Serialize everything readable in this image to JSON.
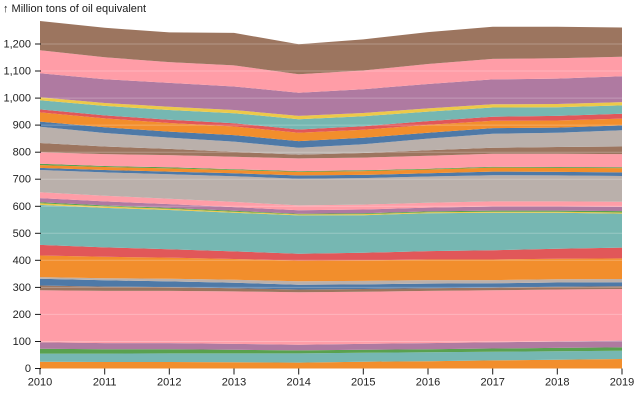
{
  "header": {
    "y_axis_title": "↑ Million tons of oil equivalent"
  },
  "chart_data": {
    "type": "area",
    "stacked": true,
    "title": "Million tons of oil equivalent",
    "xlabel": "",
    "ylabel": "Million tons of oil equivalent",
    "legend": "none",
    "grid": "horizontal white overlay lines every 100",
    "ylim": [
      0,
      1200
    ],
    "x": [
      2010,
      2011,
      2012,
      2013,
      2014,
      2015,
      2016,
      2017,
      2018,
      2019
    ],
    "x_tick_labels": [
      "2010",
      "2011",
      "2012",
      "2013",
      "2014",
      "2015",
      "2016",
      "2017",
      "2018",
      "2019"
    ],
    "y_ticks": [
      {
        "value": 0,
        "label": "0"
      },
      {
        "value": 100,
        "label": "100"
      },
      {
        "value": 200,
        "label": "200"
      },
      {
        "value": 300,
        "label": "300"
      },
      {
        "value": 400,
        "label": "400"
      },
      {
        "value": 500,
        "label": "500"
      },
      {
        "value": 600,
        "label": "600"
      },
      {
        "value": 700,
        "label": "700"
      },
      {
        "value": 800,
        "label": "800"
      },
      {
        "value": 900,
        "label": "900"
      },
      {
        "value": 1000,
        "label": "1,000"
      },
      {
        "value": 1100,
        "label": "1,100"
      },
      {
        "value": 1200,
        "label": "1,200"
      }
    ],
    "totals_by_year": [
      1285,
      1260,
      1243,
      1241,
      1199,
      1217,
      1244,
      1264,
      1264,
      1261
    ],
    "series": [
      {
        "name": "band-01",
        "color": "#f28e2c",
        "values": [
          25,
          24,
          24,
          23,
          22,
          25,
          27,
          30,
          32,
          35
        ]
      },
      {
        "name": "band-02",
        "color": "#76b7b2",
        "values": [
          30,
          31,
          32,
          33,
          34,
          33,
          33,
          32,
          32,
          31
        ]
      },
      {
        "name": "band-03",
        "color": "#59a14f",
        "values": [
          18,
          16,
          15,
          13,
          11,
          11,
          11,
          12,
          12,
          12
        ]
      },
      {
        "name": "band-04",
        "color": "#af7aa1",
        "values": [
          24,
          23,
          23,
          22,
          21,
          22,
          23,
          23,
          24,
          25
        ]
      },
      {
        "name": "band-05",
        "color": "#ff9da7",
        "values": [
          192,
          193,
          193,
          194,
          194,
          193,
          193,
          192,
          192,
          191
        ]
      },
      {
        "name": "band-06",
        "color": "#9c755f",
        "values": [
          18,
          16,
          14,
          12,
          10,
          10,
          10,
          10,
          10,
          10
        ]
      },
      {
        "name": "band-07",
        "color": "#4e79a7",
        "values": [
          25,
          23,
          21,
          20,
          18,
          17,
          17,
          16,
          16,
          15
        ]
      },
      {
        "name": "band-08",
        "color": "#bab0ab",
        "values": [
          6,
          8,
          10,
          11,
          13,
          13,
          13,
          12,
          12,
          12
        ]
      },
      {
        "name": "band-09",
        "color": "#f28e2c",
        "values": [
          80,
          79,
          78,
          77,
          76,
          76,
          76,
          76,
          76,
          76
        ]
      },
      {
        "name": "band-10",
        "color": "#e15759",
        "values": [
          39,
          35,
          31,
          28,
          25,
          28,
          31,
          34,
          37,
          40
        ]
      },
      {
        "name": "band-11",
        "color": "#76b7b2",
        "values": [
          148,
          146,
          145,
          143,
          142,
          139,
          140,
          139,
          133,
          126
        ]
      },
      {
        "name": "band-12",
        "color": "#edc949",
        "values": [
          6,
          5,
          5,
          4,
          4,
          4,
          4,
          4,
          4,
          4
        ]
      },
      {
        "name": "band-13",
        "color": "#59a14f",
        "values": [
          4,
          4,
          3,
          3,
          2,
          3,
          3,
          4,
          4,
          5
        ]
      },
      {
        "name": "band-14",
        "color": "#af7aa1",
        "values": [
          15,
          15,
          14,
          14,
          13,
          14,
          14,
          15,
          15,
          16
        ]
      },
      {
        "name": "band-15",
        "color": "#ff9da7",
        "values": [
          22,
          21,
          20,
          19,
          18,
          18,
          18,
          19,
          19,
          19
        ]
      },
      {
        "name": "band-16",
        "color": "#bab0ab",
        "values": [
          82,
          86,
          90,
          95,
          99,
          98,
          97,
          97,
          96,
          95
        ]
      },
      {
        "name": "band-17",
        "color": "#4e79a7",
        "values": [
          8,
          9,
          10,
          11,
          12,
          12,
          12,
          13,
          13,
          13
        ]
      },
      {
        "name": "band-18",
        "color": "#f28e2c",
        "values": [
          10,
          11,
          12,
          12,
          13,
          14,
          14,
          15,
          15,
          16
        ]
      },
      {
        "name": "band-19",
        "color": "#59a14f",
        "values": [
          5,
          4,
          4,
          3,
          3,
          3,
          3,
          3,
          3,
          3
        ]
      },
      {
        "name": "band-20",
        "color": "#ff9da7",
        "values": [
          43,
          44,
          45,
          46,
          47,
          47,
          48,
          48,
          49,
          49
        ]
      },
      {
        "name": "band-21",
        "color": "#9c755f",
        "values": [
          34,
          28,
          23,
          18,
          14,
          17,
          20,
          22,
          25,
          28
        ]
      },
      {
        "name": "band-22",
        "color": "#bab0ab",
        "values": [
          60,
          50,
          42,
          38,
          25,
          32,
          43,
          52,
          53,
          60
        ]
      },
      {
        "name": "band-23",
        "color": "#4e79a7",
        "values": [
          19,
          21,
          22,
          24,
          25,
          24,
          22,
          21,
          19,
          18
        ]
      },
      {
        "name": "band-24",
        "color": "#f28e2c",
        "values": [
          34,
          33,
          32,
          32,
          31,
          30,
          29,
          27,
          26,
          25
        ]
      },
      {
        "name": "band-25",
        "color": "#e15759",
        "values": [
          11,
          11,
          12,
          12,
          12,
          13,
          14,
          15,
          17,
          18
        ]
      },
      {
        "name": "band-26",
        "color": "#76b7b2",
        "values": [
          34,
          35,
          36,
          37,
          38,
          37,
          35,
          34,
          32,
          31
        ]
      },
      {
        "name": "band-27",
        "color": "#edc949",
        "values": [
          11,
          11,
          12,
          12,
          12,
          12,
          12,
          12,
          12,
          12
        ]
      },
      {
        "name": "band-28",
        "color": "#af7aa1",
        "values": [
          89,
          88,
          88,
          87,
          86,
          88,
          90,
          92,
          94,
          96
        ]
      },
      {
        "name": "band-29",
        "color": "#ff9da7",
        "values": [
          85,
          81,
          77,
          78,
          68,
          69,
          74,
          76,
          75,
          72
        ]
      },
      {
        "name": "band-30",
        "color": "#9c755f",
        "values": [
          108,
          109,
          110,
          120,
          111,
          115,
          118,
          119,
          117,
          108
        ]
      }
    ]
  }
}
